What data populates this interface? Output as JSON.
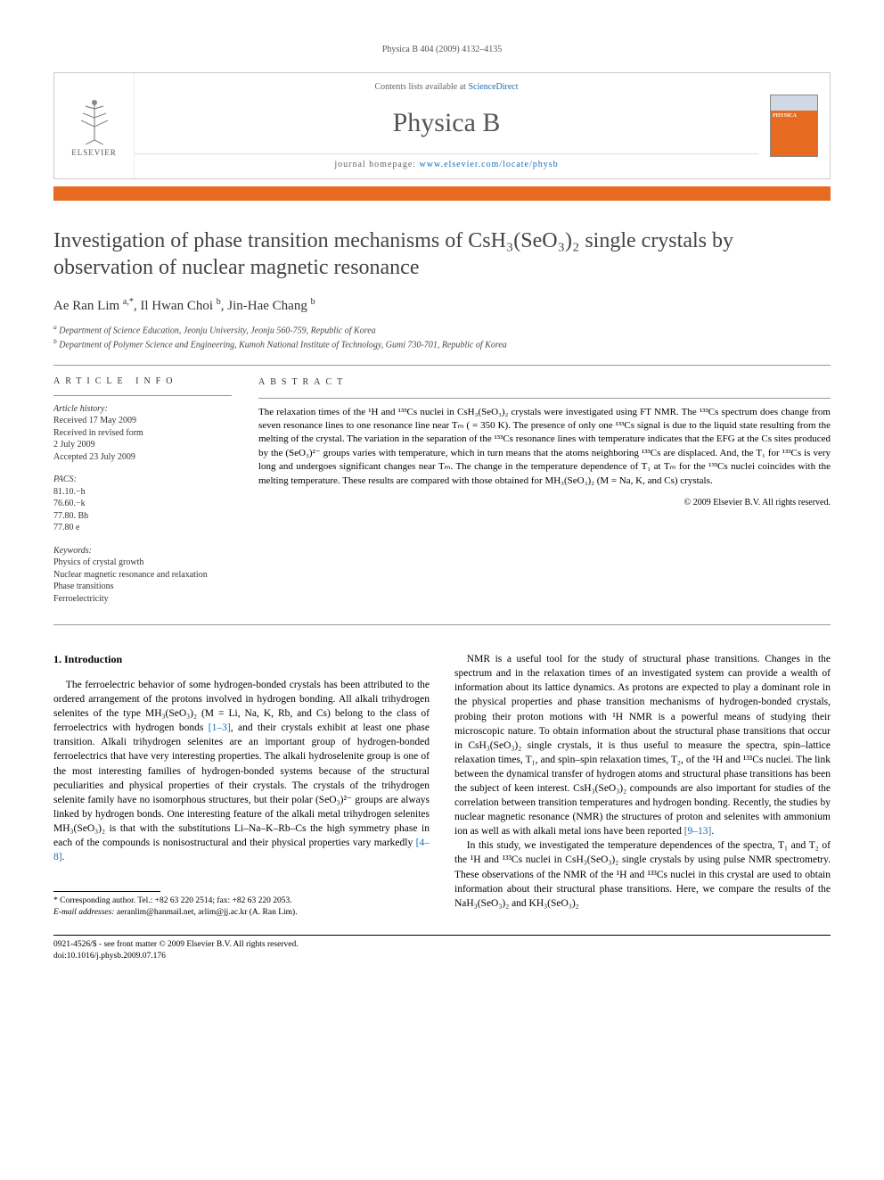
{
  "running_head": "Physica B 404 (2009) 4132–4135",
  "masthead": {
    "publisher": "ELSEVIER",
    "contents_prefix": "Contents lists available at ",
    "contents_link": "ScienceDirect",
    "journal": "Physica B",
    "homepage_prefix": "journal homepage: ",
    "homepage_link": "www.elsevier.com/locate/physb",
    "cover_label": "PHYSICA"
  },
  "title": "Investigation of phase transition mechanisms of CsH₃(SeO₃)₂ single crystals by observation of nuclear magnetic resonance",
  "authors_html": "Ae Ran Lim <sup>a,*</sup>, Il Hwan Choi <sup>b</sup>, Jin-Hae Chang <sup>b</sup>",
  "affiliations": {
    "a": "Department of Science Education, Jeonju University, Jeonju 560-759, Republic of Korea",
    "b": "Department of Polymer Science and Engineering, Kumoh National Institute of Technology, Gumi 730-701, Republic of Korea"
  },
  "article_info": {
    "head": "ARTICLE INFO",
    "history_label": "Article history:",
    "history": [
      "Received 17 May 2009",
      "Received in revised form",
      "2 July 2009",
      "Accepted 23 July 2009"
    ],
    "pacs_label": "PACS:",
    "pacs": [
      "81.10.−h",
      "76.60.−k",
      "77.80. Bh",
      "77.80 e"
    ],
    "keywords_label": "Keywords:",
    "keywords": [
      "Physics of crystal growth",
      "Nuclear magnetic resonance and relaxation",
      "Phase transitions",
      "Ferroelectricity"
    ]
  },
  "abstract": {
    "head": "ABSTRACT",
    "text": "The relaxation times of the ¹H and ¹³³Cs nuclei in CsH₃(SeO₃)₂ crystals were investigated using FT NMR. The ¹³³Cs spectrum does change from seven resonance lines to one resonance line near Tₘ ( = 350 K). The presence of only one ¹³³Cs signal is due to the liquid state resulting from the melting of the crystal. The variation in the separation of the ¹³³Cs resonance lines with temperature indicates that the EFG at the Cs sites produced by the (SeO₃)²⁻ groups varies with temperature, which in turn means that the atoms neighboring ¹³³Cs are displaced. And, the T₁ for ¹³³Cs is very long and undergoes significant changes near Tₘ. The change in the temperature dependence of T₁ at Tₘ for the ¹³³Cs nuclei coincides with the melting temperature. These results are compared with those obtained for MH₃(SeO₃)₂ (M = Na, K, and Cs) crystals.",
    "copyright": "© 2009 Elsevier B.V. All rights reserved."
  },
  "section1": {
    "head": "1. Introduction",
    "p1": "The ferroelectric behavior of some hydrogen-bonded crystals has been attributed to the ordered arrangement of the protons involved in hydrogen bonding. All alkali trihydrogen selenites of the type MH₃(SeO₃)₂ (M = Li, Na, K, Rb, and Cs) belong to the class of ferroelectrics with hydrogen bonds [1–3], and their crystals exhibit at least one phase transition. Alkali trihydrogen selenites are an important group of hydrogen-bonded ferroelectrics that have very interesting properties. The alkali hydroselenite group is one of the most interesting families of hydrogen-bonded systems because of the structural peculiarities and physical properties of their crystals. The crystals of the trihydrogen selenite family have no isomorphous structures, but their polar (SeO₃)²⁻ groups are always linked by hydrogen bonds. One interesting feature of the alkali metal trihydrogen selenites MH₃(SeO₃)₂ is that with the substitutions Li–Na–K–Rb–Cs the high symmetry phase in each of the compounds is nonisostructural and their physical properties vary markedly [4–8].",
    "p2": "NMR is a useful tool for the study of structural phase transitions. Changes in the spectrum and in the relaxation times of an investigated system can provide a wealth of information about its lattice dynamics. As protons are expected to play a dominant role in the physical properties and phase transition mechanisms of hydrogen-bonded crystals, probing their proton motions with ¹H NMR is a powerful means of studying their microscopic nature. To obtain information about the structural phase transitions that occur in CsH₃(SeO₃)₂ single crystals, it is thus useful to measure the spectra, spin–lattice relaxation times, T₁, and spin–spin relaxation times, T₂, of the ¹H and ¹³³Cs nuclei. The link between the dynamical transfer of hydrogen atoms and structural phase transitions has been the subject of keen interest. CsH₃(SeO₃)₂ compounds are also important for studies of the correlation between transition temperatures and hydrogen bonding. Recently, the studies by nuclear magnetic resonance (NMR) the structures of proton and selenites with ammonium ion as well as with alkali metal ions have been reported [9–13].",
    "p3": "In this study, we investigated the temperature dependences of the spectra, T₁ and T₂ of the ¹H and ¹³³Cs nuclei in CsH₃(SeO₃)₂ single crystals by using pulse NMR spectrometry. These observations of the NMR of the ¹H and ¹³³Cs nuclei in this crystal are used to obtain information about their structural phase transitions. Here, we compare the results of the NaH₃(SeO₃)₂ and KH₃(SeO₃)₂"
  },
  "footnote": {
    "corr": "* Corresponding author. Tel.: +82 63 220 2514; fax: +82 63 220 2053.",
    "email_label": "E-mail addresses:",
    "emails": " aeranlim@hanmail.net, arlim@jj.ac.kr (A. Ran Lim)."
  },
  "footer": {
    "line1": "0921-4526/$ - see front matter © 2009 Elsevier B.V. All rights reserved.",
    "line2": "doi:10.1016/j.physb.2009.07.176"
  },
  "colors": {
    "accent": "#e66a1f",
    "link": "#1a6db5",
    "text": "#000000",
    "muted": "#555555",
    "border": "#cccccc"
  }
}
